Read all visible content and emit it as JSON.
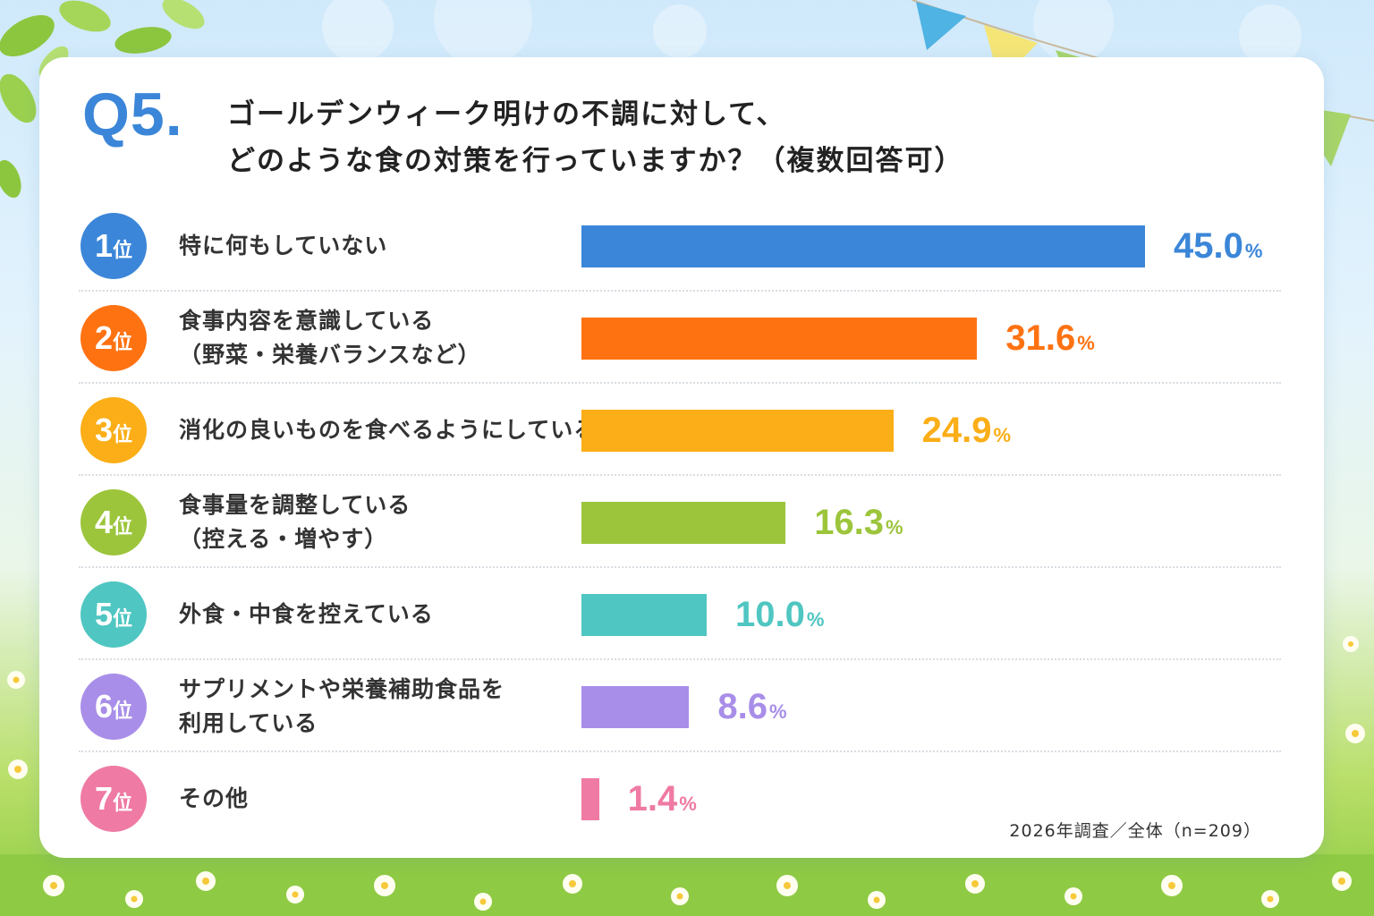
{
  "title": {
    "q_number": "Q5.",
    "line1": "ゴールデンウィーク明けの不調に対して、",
    "line2": "どのような食の対策を行っていますか？（複数回答可）"
  },
  "rank_suffix": "位",
  "percent_symbol": "%",
  "footnote": "2026年調査／全体（n=209）",
  "colors": [
    "#3b86d8",
    "#ff7212",
    "#fbae17",
    "#9cc53c",
    "#4fc6c1",
    "#a88ee8",
    "#ef7aa3"
  ],
  "chart_data": {
    "type": "bar",
    "orientation": "horizontal",
    "unit": "%",
    "xlim": [
      0,
      50
    ],
    "grid": false,
    "categories": [
      "特に何もしていない",
      "食事内容を意識している（野菜・栄養バランスなど）",
      "消化の良いものを食べるようにしている",
      "食事量を調整している（控える・増やす）",
      "外食・中食を控えている",
      "サプリメントや栄養補助食品を利用している",
      "その他"
    ],
    "values": [
      45.0,
      31.6,
      24.9,
      16.3,
      10.0,
      8.6,
      1.4
    ]
  },
  "items": [
    {
      "rank": "1",
      "label_lines": [
        "特に何もしていない"
      ],
      "value": "45.0"
    },
    {
      "rank": "2",
      "label_lines": [
        "食事内容を意識している",
        "（野菜・栄養バランスなど）"
      ],
      "value": "31.6"
    },
    {
      "rank": "3",
      "label_lines": [
        "消化の良いものを食べるようにしている"
      ],
      "value": "24.9"
    },
    {
      "rank": "4",
      "label_lines": [
        "食事量を調整している",
        "（控える・増やす）"
      ],
      "value": "16.3"
    },
    {
      "rank": "5",
      "label_lines": [
        "外食・中食を控えている"
      ],
      "value": "10.0"
    },
    {
      "rank": "6",
      "label_lines": [
        "サプリメントや栄養補助食品を",
        "利用している"
      ],
      "value": "8.6"
    },
    {
      "rank": "7",
      "label_lines": [
        "その他"
      ],
      "value": "1.4"
    }
  ]
}
